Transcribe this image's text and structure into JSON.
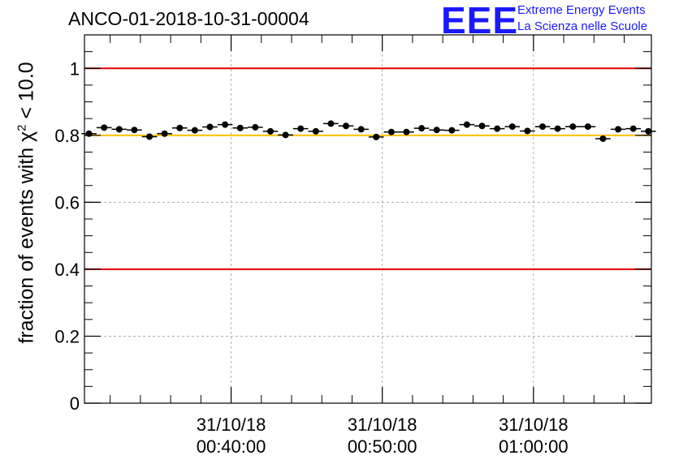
{
  "title": "ANCO-01-2018-10-31-00004",
  "logo": {
    "text": "EEE",
    "line1": "Extreme Energy Events",
    "line2": "La Scienza nelle Scuole",
    "color": "#1a1aff"
  },
  "chart_data": {
    "type": "scatter",
    "title": "ANCO-01-2018-10-31-00004",
    "ylabel": {
      "prefix": "fraction of events with ",
      "symbol": "χ",
      "sup": "2",
      "suffix": " < 10.0"
    },
    "ylim": [
      0,
      1.1
    ],
    "yticks": [
      "0",
      "0.2",
      "0.4",
      "0.6",
      "0.8",
      "1"
    ],
    "grid": true,
    "xlim_minutes": [
      30.3,
      67.8
    ],
    "xticks": [
      {
        "date": "31/10/18",
        "time": "00:40:00",
        "minutes": 40
      },
      {
        "date": "31/10/18",
        "time": "00:50:00",
        "minutes": 50
      },
      {
        "date": "31/10/18",
        "time": "01:00:00",
        "minutes": 60
      }
    ],
    "reference_lines": [
      {
        "y": 1.0,
        "color": "#e60000"
      },
      {
        "y": 0.4,
        "color": "#e60000"
      },
      {
        "y": 0.8,
        "color": "#ffc000"
      }
    ],
    "series": [
      {
        "name": "fraction",
        "x_minutes": [
          30.6,
          31.6,
          32.6,
          33.6,
          34.6,
          35.6,
          36.6,
          37.6,
          38.6,
          39.6,
          40.6,
          41.6,
          42.6,
          43.6,
          44.6,
          45.6,
          46.6,
          47.6,
          48.6,
          49.6,
          50.6,
          51.6,
          52.6,
          53.6,
          54.6,
          55.6,
          56.6,
          57.6,
          58.6,
          59.6,
          60.6,
          61.6,
          62.6,
          63.6,
          64.6,
          65.6,
          66.6,
          67.6
        ],
        "y": [
          0.805,
          0.823,
          0.818,
          0.816,
          0.796,
          0.805,
          0.822,
          0.815,
          0.825,
          0.832,
          0.822,
          0.824,
          0.812,
          0.801,
          0.82,
          0.812,
          0.835,
          0.828,
          0.818,
          0.795,
          0.81,
          0.81,
          0.821,
          0.816,
          0.815,
          0.832,
          0.828,
          0.82,
          0.826,
          0.813,
          0.826,
          0.82,
          0.826,
          0.826,
          0.79,
          0.818,
          0.82,
          0.812
        ],
        "y_err": 0.005
      }
    ]
  }
}
